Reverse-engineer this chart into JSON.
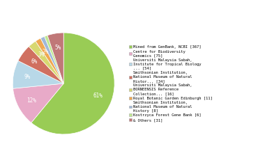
{
  "labels": [
    "Mined from GenBank, NCBI [367]",
    "Centre for Biodiversity\nGenomics [75]",
    "Universiti Malaysia Sabah,\nInstitute for Tropical Biology\n... [54]",
    "Smithsonian Institution,\nNational Museum of Natural\nHistor... [34]",
    "Universiti Malaysia Sabah,\nBORNEENSIS Reference\nCollection... [16]",
    "Royal Botanic Garden Edinburgh [11]",
    "Smithsonian Institution,\nNational Museum of Natural\nHistory [8]",
    "Kostrzyca Forest Gene Bank [6]",
    "& Others [31]"
  ],
  "values": [
    367,
    75,
    54,
    34,
    16,
    11,
    8,
    6,
    31
  ],
  "colors": [
    "#99cc55",
    "#e8aac8",
    "#b8d8e8",
    "#d07060",
    "#d8d870",
    "#f0a850",
    "#a0b8d8",
    "#c0e890",
    "#c07878"
  ],
  "startangle": 90,
  "background_color": "#ffffff"
}
